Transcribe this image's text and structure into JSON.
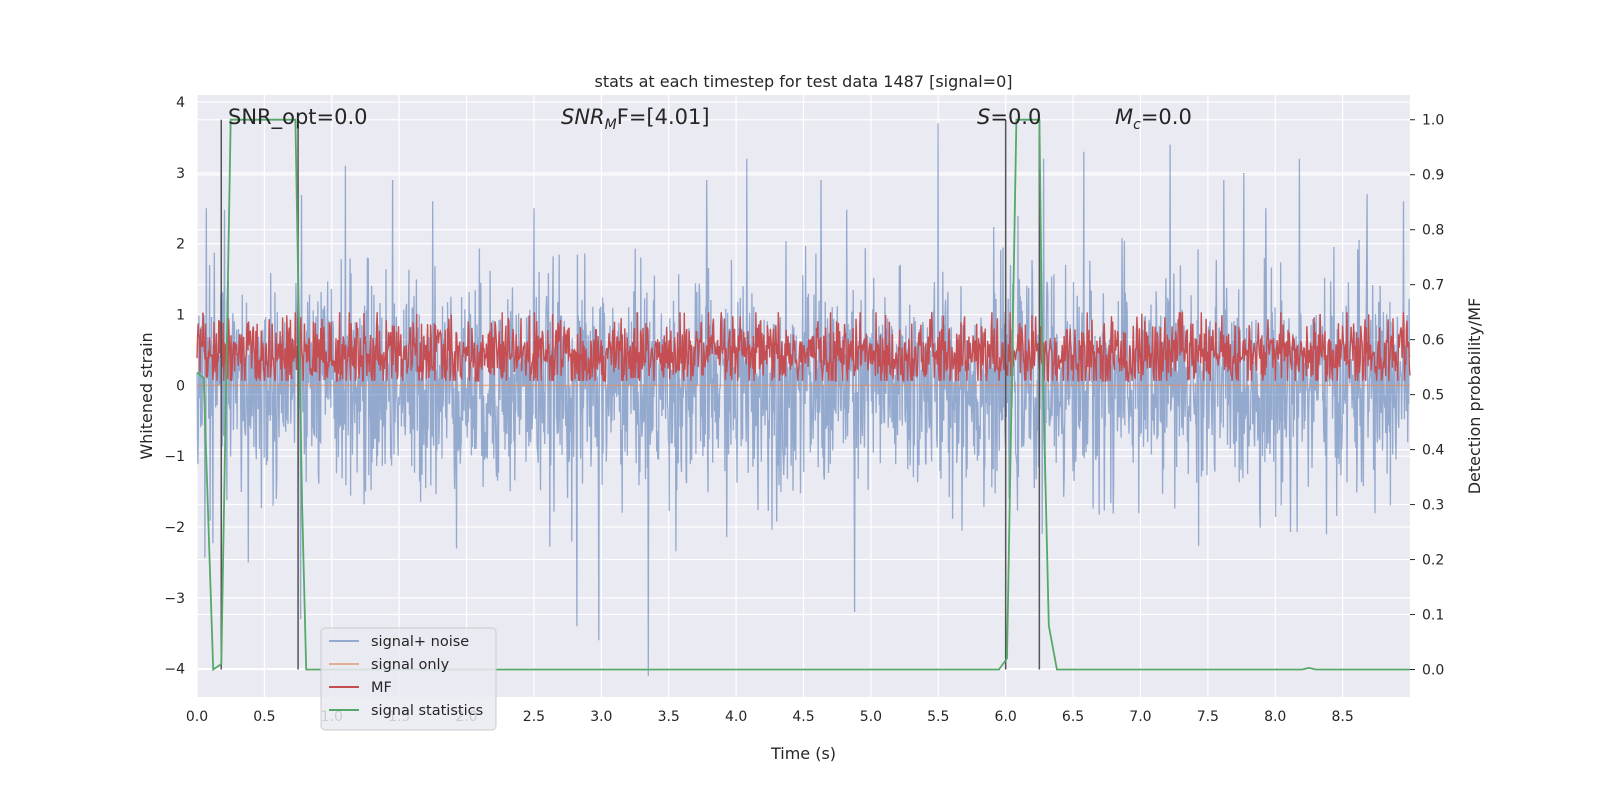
{
  "chart_data": {
    "type": "line",
    "title": "stats at each timestep for test data 1487 [signal=0]",
    "xlabel": "Time (s)",
    "ylabel_left": "Whitened strain",
    "ylabel_right": "Detection probability/MF",
    "xlim": [
      0,
      9.0
    ],
    "ylim_left": [
      -4.4,
      4.1
    ],
    "ylim_right": [
      -0.05,
      1.045
    ],
    "xticks": [
      0.0,
      0.5,
      1.0,
      1.5,
      2.0,
      2.5,
      3.0,
      3.5,
      4.0,
      4.5,
      5.0,
      5.5,
      6.0,
      6.5,
      7.0,
      7.5,
      8.0,
      8.5
    ],
    "xtick_labels": [
      "0.0",
      "0.5",
      "1.0",
      "1.5",
      "2.0",
      "2.5",
      "3.0",
      "3.5",
      "4.0",
      "4.5",
      "5.0",
      "5.5",
      "6.0",
      "6.5",
      "7.0",
      "7.5",
      "8.0",
      "8.5"
    ],
    "yticks_left": [
      -4,
      -3,
      -2,
      -1,
      0,
      1,
      2,
      3,
      4
    ],
    "ytick_labels_left": [
      "−4",
      "−3",
      "−2",
      "−1",
      "0",
      "1",
      "2",
      "3",
      "4"
    ],
    "yticks_right": [
      0.0,
      0.1,
      0.2,
      0.3,
      0.4,
      0.5,
      0.6,
      0.7,
      0.8,
      0.9,
      1.0
    ],
    "ytick_labels_right": [
      "0.0",
      "0.1",
      "0.2",
      "0.3",
      "0.4",
      "0.5",
      "0.6",
      "0.7",
      "0.8",
      "0.9",
      "1.0"
    ],
    "grid": true,
    "legend_position": "lower-left",
    "annotations": {
      "snr_opt": "SNR_opt=0.0",
      "snr_mf_base": "SNR",
      "snr_mf_sub": "M",
      "snr_mf_rest": "F=[4.01]",
      "s_italic": "S",
      "s_rest": "=0.0",
      "mc_base": "M",
      "mc_sub": "c",
      "mc_rest": "=0.0"
    },
    "series": [
      {
        "name": "signal+ noise",
        "color": "#4c72b0",
        "axis": "left",
        "style": "noise",
        "x_range": [
          0,
          9.0
        ],
        "amplitude_std": 0.75,
        "peaks": [
          [
            0.07,
            2.5
          ],
          [
            0.38,
            -2.5
          ],
          [
            0.77,
            -3.3
          ],
          [
            1.1,
            3.1
          ],
          [
            1.45,
            2.9
          ],
          [
            1.75,
            2.6
          ],
          [
            2.5,
            2.5
          ],
          [
            2.82,
            -3.4
          ],
          [
            2.98,
            -3.6
          ],
          [
            3.35,
            -4.1
          ],
          [
            3.78,
            2.9
          ],
          [
            4.08,
            3.2
          ],
          [
            4.63,
            2.9
          ],
          [
            4.88,
            -3.2
          ],
          [
            5.5,
            3.7
          ],
          [
            6.28,
            3.2
          ],
          [
            6.58,
            3.3
          ],
          [
            7.22,
            3.4
          ],
          [
            7.62,
            2.9
          ],
          [
            7.93,
            2.5
          ],
          [
            8.18,
            3.2
          ],
          [
            8.68,
            2.7
          ],
          [
            8.95,
            2.6
          ]
        ]
      },
      {
        "name": "signal only",
        "color": "#dd8452",
        "axis": "left",
        "style": "flat",
        "value": 0.0
      },
      {
        "name": "MF",
        "color": "#c44e52",
        "axis": "right",
        "style": "band",
        "x_range": [
          0,
          9.0
        ],
        "band_low": 0.525,
        "band_high": 0.62,
        "spike_max": 0.65
      },
      {
        "name": "signal statistics",
        "color": "#55a868",
        "axis": "right",
        "style": "line",
        "x": [
          0.0,
          0.05,
          0.08,
          0.12,
          0.18,
          0.25,
          0.73,
          0.78,
          0.81,
          5.95,
          6.01,
          6.08,
          6.25,
          6.27,
          6.32,
          6.38,
          8.2,
          8.25,
          8.3,
          9.0
        ],
        "y": [
          0.54,
          0.53,
          0.3,
          0.0,
          0.01,
          1.0,
          1.0,
          0.3,
          0.0,
          0.0,
          0.02,
          1.0,
          1.0,
          0.6,
          0.08,
          0.0,
          0.0,
          0.003,
          0.0,
          0.0
        ]
      }
    ],
    "vlines": [
      {
        "x": 0.18,
        "y_range": [
          0.0,
          1.0
        ],
        "color": "#555555"
      },
      {
        "x": 0.75,
        "y_range": [
          0.0,
          1.0
        ],
        "color": "#555555"
      },
      {
        "x": 6.0,
        "y_range": [
          0.0,
          1.0
        ],
        "color": "#555555"
      },
      {
        "x": 6.25,
        "y_range": [
          0.0,
          1.0
        ],
        "color": "#555555"
      }
    ],
    "legend": [
      {
        "label": "signal+ noise",
        "color": "#4c72b0",
        "alpha": 0.55
      },
      {
        "label": "signal only",
        "color": "#dd8452",
        "alpha": 0.6
      },
      {
        "label": "MF",
        "color": "#c44e52",
        "alpha": 1.0
      },
      {
        "label": "signal statistics",
        "color": "#55a868",
        "alpha": 1.0
      }
    ]
  }
}
